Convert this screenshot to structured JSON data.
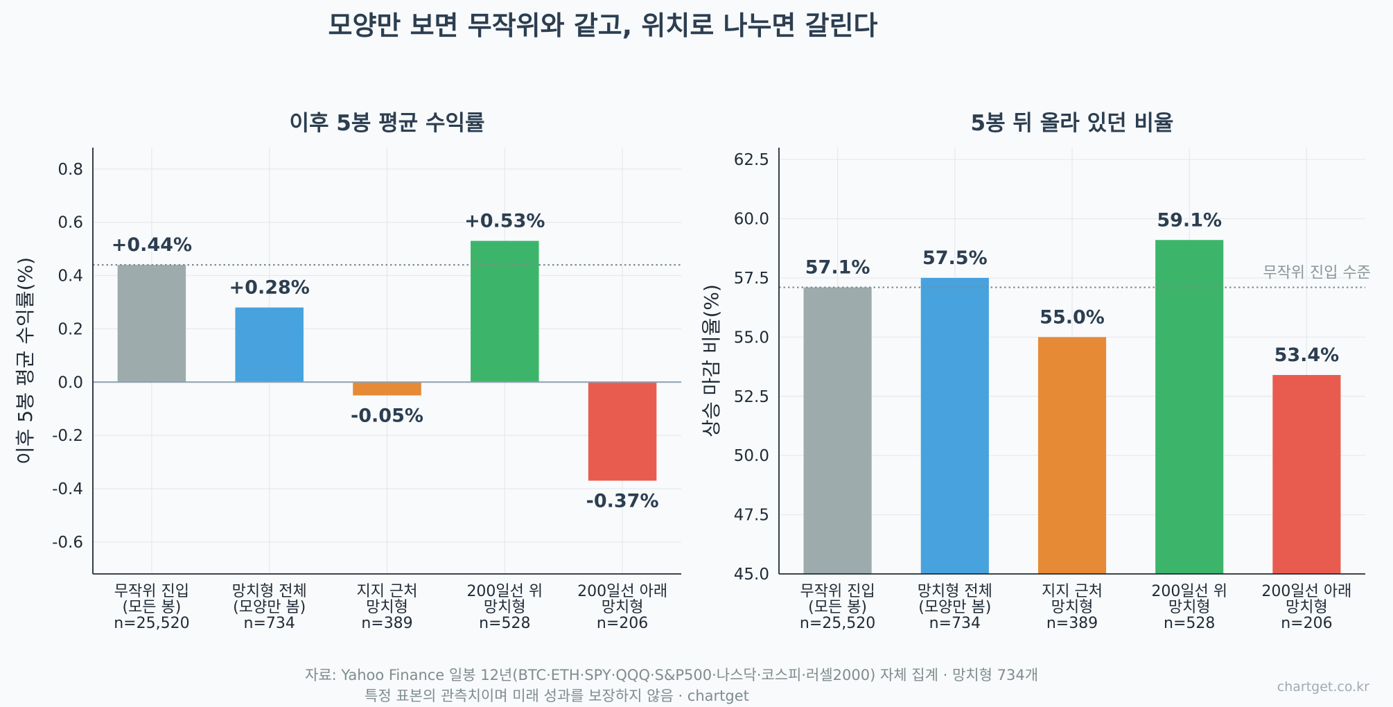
{
  "main_title": "모양만 보면 무작위와 같고, 위치로 나누면 갈린다",
  "colors": {
    "gray": "#9eabac",
    "blue": "#47a2de",
    "orange": "#e68a36",
    "green": "#3cb56a",
    "red": "#e85c4f",
    "text": "#2c3e50",
    "ref_line": "#7f8c8d"
  },
  "chart_data": [
    {
      "type": "bar",
      "title": "이후 5봉 평균 수익률",
      "ylabel": "이후 5봉 평균 수익률(%)",
      "xlabel": "",
      "ylim": [
        -0.72,
        0.88
      ],
      "yticks": [
        -0.6,
        -0.4,
        -0.2,
        0.0,
        0.2,
        0.4,
        0.6,
        0.8
      ],
      "ytick_labels": [
        "-0.6",
        "-0.4",
        "-0.2",
        "0.0",
        "0.2",
        "0.4",
        "0.6",
        "0.8"
      ],
      "categories": [
        [
          "무작위 진입",
          "(모든 봉)",
          "n=25,520"
        ],
        [
          "망치형 전체",
          "(모양만 봄)",
          "n=734"
        ],
        [
          "지지 근처",
          "망치형",
          "n=389"
        ],
        [
          "200일선 위",
          "망치형",
          "n=528"
        ],
        [
          "200일선 아래",
          "망치형",
          "n=206"
        ]
      ],
      "values": [
        0.44,
        0.28,
        -0.05,
        0.53,
        -0.37
      ],
      "value_labels": [
        "+0.44%",
        "+0.28%",
        "-0.05%",
        "+0.53%",
        "-0.37%"
      ],
      "bar_colors": [
        "gray",
        "blue",
        "orange",
        "green",
        "red"
      ],
      "reference_line": {
        "value": 0.44,
        "label": ""
      },
      "zero_line": true,
      "grid": true
    },
    {
      "type": "bar",
      "title": "5봉 뒤 올라 있던 비율",
      "ylabel": "상승 마감 비율(%)",
      "xlabel": "",
      "ylim": [
        45.0,
        63.0
      ],
      "yticks": [
        45.0,
        47.5,
        50.0,
        52.5,
        55.0,
        57.5,
        60.0,
        62.5
      ],
      "ytick_labels": [
        "45.0",
        "47.5",
        "50.0",
        "52.5",
        "55.0",
        "57.5",
        "60.0",
        "62.5"
      ],
      "categories": [
        [
          "무작위 진입",
          "(모든 봉)",
          "n=25,520"
        ],
        [
          "망치형 전체",
          "(모양만 봄)",
          "n=734"
        ],
        [
          "지지 근처",
          "망치형",
          "n=389"
        ],
        [
          "200일선 위",
          "망치형",
          "n=528"
        ],
        [
          "200일선 아래",
          "망치형",
          "n=206"
        ]
      ],
      "values": [
        57.1,
        57.5,
        55.0,
        59.1,
        53.4
      ],
      "value_labels": [
        "57.1%",
        "57.5%",
        "55.0%",
        "59.1%",
        "53.4%"
      ],
      "bar_colors": [
        "gray",
        "blue",
        "orange",
        "green",
        "red"
      ],
      "reference_line": {
        "value": 57.1,
        "label": "무작위 진입 수준"
      },
      "zero_line": false,
      "grid": true
    }
  ],
  "footer": {
    "source_line1": "자료: Yahoo Finance 일봉 12년(BTC·ETH·SPY·QQQ·S&P500·나스닥·코스피·러셀2000) 자체 집계 · 망치형 734개",
    "source_line2": "특정 표본의 관측치이며 미래 성과를 보장하지 않음 · chartget",
    "watermark": "chartget.co.kr"
  }
}
